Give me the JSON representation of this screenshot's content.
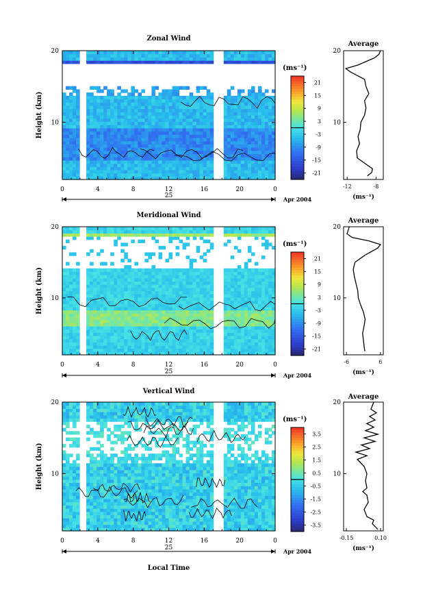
{
  "chart_data": [
    {
      "type": "heatmap",
      "title": "Zonal Wind",
      "ylabel": "Height (km)",
      "xlabel": "",
      "x_ticks": [
        "0",
        "4",
        "8",
        "12",
        "16",
        "20",
        "0"
      ],
      "y_ticks": [
        "20",
        "10"
      ],
      "xlim": [
        0,
        24
      ],
      "ylim": [
        2,
        20
      ],
      "date_day": "25",
      "date_label": "Apr 2004",
      "colorbar": {
        "unit": "(ms⁻¹)",
        "ticks": [
          "21",
          "15",
          "9",
          "3",
          "-3",
          "-9",
          "-15",
          "-21"
        ],
        "range": [
          -24,
          24
        ]
      },
      "average": {
        "title": "Average",
        "x_ticks": [
          "-12",
          "-8"
        ],
        "xlim": [
          -12.5,
          -7
        ],
        "y_ticks": [
          "20",
          "10"
        ],
        "unit": "(ms⁻¹)",
        "profile": [
          [
            2.5,
            -9.2
          ],
          [
            3,
            -8.6
          ],
          [
            3.5,
            -8.5
          ],
          [
            4,
            -9.2
          ],
          [
            5,
            -10.6
          ],
          [
            6,
            -10.7
          ],
          [
            7,
            -10.3
          ],
          [
            8,
            -10.5
          ],
          [
            9,
            -10.2
          ],
          [
            10,
            -10.1
          ],
          [
            11,
            -9.6
          ],
          [
            12,
            -9.4
          ],
          [
            13,
            -9.6
          ],
          [
            14,
            -9.0
          ],
          [
            15,
            -9.4
          ],
          [
            16,
            -9.6
          ],
          [
            17,
            -11.5
          ],
          [
            17.5,
            -12.2
          ],
          [
            18,
            -10.5
          ],
          [
            19,
            -8.2
          ],
          [
            19.5,
            -7.6
          ],
          [
            20,
            -7.4
          ]
        ]
      }
    },
    {
      "type": "heatmap",
      "title": "Meridional Wind",
      "ylabel": "Height (km)",
      "xlabel": "",
      "x_ticks": [
        "0",
        "4",
        "8",
        "12",
        "16",
        "20",
        "0"
      ],
      "y_ticks": [
        "20",
        "10"
      ],
      "xlim": [
        0,
        24
      ],
      "ylim": [
        2,
        20
      ],
      "date_day": "25",
      "date_label": "Apr 2004",
      "colorbar": {
        "unit": "(ms⁻¹)",
        "ticks": [
          "21",
          "15",
          "9",
          "3",
          "-3",
          "-9",
          "-15",
          "-21"
        ],
        "range": [
          -24,
          24
        ]
      },
      "average": {
        "title": "Average",
        "x_ticks": [
          "-6",
          "6"
        ],
        "xlim": [
          -7,
          7
        ],
        "y_ticks": [
          "20",
          "10"
        ],
        "unit": "(ms⁻¹)",
        "profile": [
          [
            2.5,
            0.5
          ],
          [
            3,
            0.3
          ],
          [
            4,
            0.0
          ],
          [
            5,
            -0.3
          ],
          [
            6,
            0.2
          ],
          [
            7,
            0.6
          ],
          [
            8,
            0.0
          ],
          [
            9,
            -1.0
          ],
          [
            10,
            -1.8
          ],
          [
            11,
            -2.0
          ],
          [
            12,
            -2.6
          ],
          [
            13,
            -3.2
          ],
          [
            14,
            -3.6
          ],
          [
            15,
            -3.0
          ],
          [
            16,
            0.5
          ],
          [
            17,
            5.0
          ],
          [
            17.5,
            6.0
          ],
          [
            18,
            2.0
          ],
          [
            18.5,
            -4.0
          ],
          [
            19,
            -5.8
          ],
          [
            20,
            -5.0
          ]
        ]
      }
    },
    {
      "type": "heatmap",
      "title": "Vertical Wind",
      "ylabel": "Height (km)",
      "xlabel": "Local Time",
      "x_ticks": [
        "0",
        "4",
        "8",
        "12",
        "16",
        "20",
        "0"
      ],
      "y_ticks": [
        "20",
        "10"
      ],
      "xlim": [
        0,
        24
      ],
      "ylim": [
        2,
        20
      ],
      "date_day": "25",
      "date_label": "Apr 2004",
      "colorbar": {
        "unit": "(ms⁻¹)",
        "ticks": [
          "3.5",
          "2.5",
          "1.5",
          "0.5",
          "-0.5",
          "-1.5",
          "-2.5",
          "-3.5"
        ],
        "range": [
          -4,
          4
        ]
      },
      "average": {
        "title": "Average",
        "x_ticks": [
          "-0.15",
          "0.10"
        ],
        "xlim": [
          -0.17,
          0.12
        ],
        "y_ticks": [
          "20",
          "10"
        ],
        "unit": "(ms⁻¹)",
        "profile": [
          [
            2.2,
            0.08
          ],
          [
            3,
            0.04
          ],
          [
            3.5,
            0.05
          ],
          [
            4,
            0.0
          ],
          [
            5,
            -0.02
          ],
          [
            6,
            0.01
          ],
          [
            7,
            0.0
          ],
          [
            7.5,
            -0.03
          ],
          [
            8,
            0.0
          ],
          [
            9,
            -0.01
          ],
          [
            10,
            0.0
          ],
          [
            11,
            -0.02
          ],
          [
            12,
            -0.07
          ],
          [
            12.5,
            0.0
          ],
          [
            13,
            -0.08
          ],
          [
            13.5,
            0.02
          ],
          [
            14,
            -0.04
          ],
          [
            14.5,
            0.06
          ],
          [
            15,
            -0.02
          ],
          [
            15.5,
            0.08
          ],
          [
            16,
            -0.01
          ],
          [
            16.5,
            0.05
          ],
          [
            17,
            0.0
          ],
          [
            17.5,
            0.06
          ],
          [
            18,
            0.02
          ],
          [
            18.5,
            0.07
          ],
          [
            19,
            0.03
          ],
          [
            20,
            0.05
          ]
        ]
      }
    }
  ]
}
